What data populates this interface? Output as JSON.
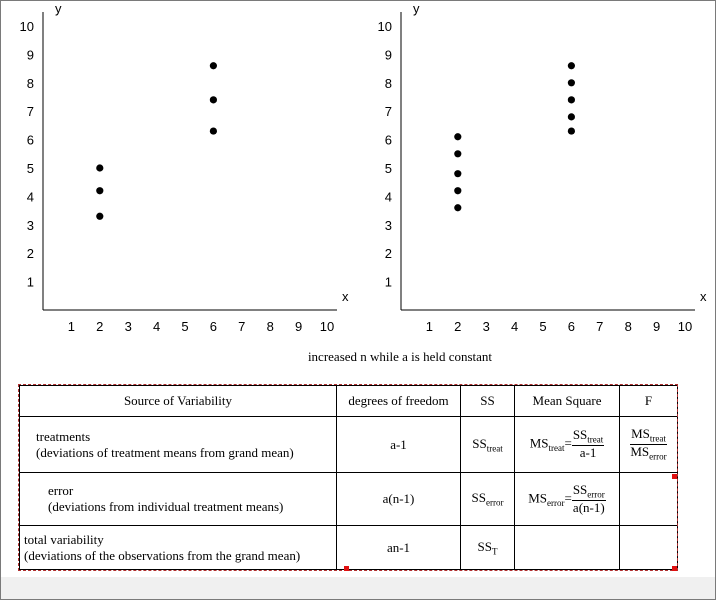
{
  "chart_data": [
    {
      "type": "scatter",
      "title": "",
      "xlabel": "x",
      "ylabel": "y",
      "xlim": [
        0,
        10
      ],
      "ylim": [
        0,
        10
      ],
      "xticks": [
        "1",
        "2",
        "3",
        "4",
        "5",
        "6",
        "7",
        "8",
        "9",
        "10"
      ],
      "yticks": [
        "1",
        "2",
        "3",
        "4",
        "5",
        "6",
        "7",
        "8",
        "9",
        "10"
      ],
      "grid": false,
      "points": [
        {
          "x": 2,
          "y": 5.0
        },
        {
          "x": 2,
          "y": 4.2
        },
        {
          "x": 2,
          "y": 3.3
        },
        {
          "x": 6,
          "y": 8.6
        },
        {
          "x": 6,
          "y": 7.4
        },
        {
          "x": 6,
          "y": 6.3
        }
      ]
    },
    {
      "type": "scatter",
      "title": "",
      "xlabel": "x",
      "ylabel": "y",
      "xlim": [
        0,
        10
      ],
      "ylim": [
        0,
        10
      ],
      "xticks": [
        "1",
        "2",
        "3",
        "4",
        "5",
        "6",
        "7",
        "8",
        "9",
        "10"
      ],
      "yticks": [
        "1",
        "2",
        "3",
        "4",
        "5",
        "6",
        "7",
        "8",
        "9",
        "10"
      ],
      "grid": false,
      "points": [
        {
          "x": 2,
          "y": 6.1
        },
        {
          "x": 2,
          "y": 5.5
        },
        {
          "x": 2,
          "y": 4.8
        },
        {
          "x": 2,
          "y": 4.2
        },
        {
          "x": 2,
          "y": 3.6
        },
        {
          "x": 6,
          "y": 8.6
        },
        {
          "x": 6,
          "y": 8.0
        },
        {
          "x": 6,
          "y": 7.4
        },
        {
          "x": 6,
          "y": 6.8
        },
        {
          "x": 6,
          "y": 6.3
        }
      ]
    }
  ],
  "caption": "increased n while a is held constant",
  "table": {
    "headers": [
      "Source of Variability",
      "degrees of freedom",
      "SS",
      "Mean Square",
      "F"
    ],
    "rows": [
      {
        "source": "treatments",
        "source_desc": "(deviations of treatment means from grand mean)",
        "df": "a-1",
        "ss": {
          "main": "SS",
          "sub": "treat"
        },
        "ms": {
          "main": "MS",
          "sub": "treat",
          "num_main": "SS",
          "num_sub": "treat",
          "den": "a-1"
        },
        "f": {
          "num_main": "MS",
          "num_sub": "treat",
          "den_main": "MS",
          "den_sub": "error"
        }
      },
      {
        "source": "error",
        "source_desc": "(deviations from individual treatment means)",
        "df": "a(n-1)",
        "ss": {
          "main": "SS",
          "sub": "error"
        },
        "ms": {
          "main": "MS",
          "sub": "error",
          "num_main": "SS",
          "num_sub": "error",
          "den": "a(n-1)"
        }
      },
      {
        "source": "total variability",
        "source_desc": "(deviations of the observations from the grand mean)",
        "df": "an-1",
        "ss": {
          "main": "SS",
          "sub": "T"
        }
      }
    ]
  }
}
